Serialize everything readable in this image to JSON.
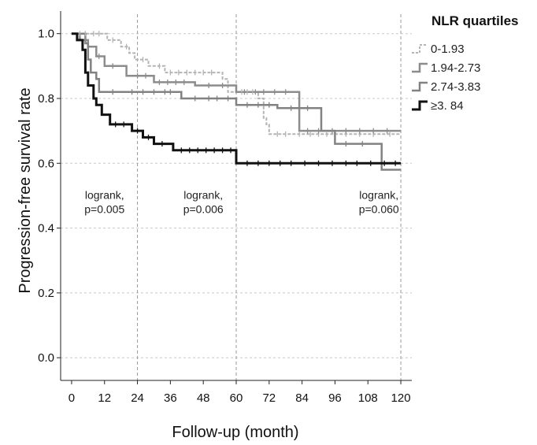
{
  "chart_data": {
    "type": "line",
    "xlabel": "Follow-up (month)",
    "ylabel": "Progression-free survival rate",
    "xlim": [
      -4,
      124
    ],
    "ylim": [
      -0.07,
      1.06
    ],
    "xticks": [
      0,
      12,
      24,
      36,
      48,
      60,
      72,
      84,
      96,
      108,
      120
    ],
    "yticks": [
      0.0,
      0.2,
      0.4,
      0.6,
      0.8,
      1.0
    ],
    "ytick_labels": [
      "0.0",
      "0.2",
      "0.4",
      "0.6",
      "0.8",
      "1.0"
    ],
    "vertical_reference_lines": [
      24,
      60,
      120
    ],
    "grid": "dotted horizontal at y ticks",
    "legend": {
      "title": "NLR quartiles",
      "placement": "top-right, outside plot"
    },
    "series": [
      {
        "name": "0-1.93",
        "color": "#b4b4b4",
        "dashed": true,
        "width": 2,
        "points": [
          [
            0,
            1.0
          ],
          [
            13,
            1.0
          ],
          [
            13,
            0.98
          ],
          [
            18,
            0.98
          ],
          [
            18,
            0.96
          ],
          [
            21,
            0.96
          ],
          [
            21,
            0.94
          ],
          [
            23,
            0.94
          ],
          [
            23,
            0.92
          ],
          [
            28,
            0.92
          ],
          [
            28,
            0.9
          ],
          [
            34,
            0.9
          ],
          [
            34,
            0.88
          ],
          [
            55,
            0.88
          ],
          [
            55,
            0.86
          ],
          [
            57,
            0.86
          ],
          [
            57,
            0.82
          ],
          [
            68,
            0.82
          ],
          [
            68,
            0.8
          ],
          [
            70,
            0.8
          ],
          [
            70,
            0.74
          ],
          [
            71,
            0.74
          ],
          [
            71,
            0.72
          ],
          [
            72,
            0.72
          ],
          [
            72,
            0.69
          ],
          [
            120,
            0.69
          ]
        ],
        "censor_x": [
          3,
          5,
          8,
          10,
          15,
          20,
          26,
          32,
          36,
          39,
          42,
          45,
          48,
          51,
          62,
          64,
          66,
          75,
          78,
          83,
          87,
          90,
          93,
          100,
          105,
          110,
          116
        ]
      },
      {
        "name": "1.94-2.73",
        "color": "#8c8c8c",
        "dashed": false,
        "width": 2.5,
        "points": [
          [
            0,
            1.0
          ],
          [
            3,
            1.0
          ],
          [
            3,
            0.98
          ],
          [
            6,
            0.98
          ],
          [
            6,
            0.96
          ],
          [
            9,
            0.96
          ],
          [
            9,
            0.93
          ],
          [
            12,
            0.93
          ],
          [
            12,
            0.9
          ],
          [
            20,
            0.9
          ],
          [
            20,
            0.87
          ],
          [
            30,
            0.87
          ],
          [
            30,
            0.85
          ],
          [
            45,
            0.85
          ],
          [
            45,
            0.84
          ],
          [
            60,
            0.84
          ],
          [
            60,
            0.82
          ],
          [
            83,
            0.82
          ],
          [
            83,
            0.7
          ],
          [
            120,
            0.7
          ]
        ],
        "censor_x": [
          5,
          10,
          15,
          24,
          27,
          32,
          35,
          38,
          41,
          50,
          55,
          63,
          67,
          70,
          74,
          78,
          86,
          90,
          95,
          100,
          105,
          110,
          115
        ]
      },
      {
        "name": "2.74-3.83",
        "color": "#828282",
        "dashed": false,
        "width": 2.5,
        "points": [
          [
            0,
            1.0
          ],
          [
            5,
            1.0
          ],
          [
            5,
            0.97
          ],
          [
            6,
            0.97
          ],
          [
            6,
            0.92
          ],
          [
            7,
            0.92
          ],
          [
            7,
            0.88
          ],
          [
            9,
            0.88
          ],
          [
            9,
            0.86
          ],
          [
            10,
            0.86
          ],
          [
            10,
            0.82
          ],
          [
            40,
            0.82
          ],
          [
            40,
            0.8
          ],
          [
            60,
            0.8
          ],
          [
            60,
            0.78
          ],
          [
            75,
            0.78
          ],
          [
            75,
            0.77
          ],
          [
            91,
            0.77
          ],
          [
            91,
            0.7
          ],
          [
            96,
            0.7
          ],
          [
            96,
            0.66
          ],
          [
            113,
            0.66
          ],
          [
            113,
            0.58
          ],
          [
            120,
            0.58
          ]
        ],
        "censor_x": [
          15,
          22,
          26,
          30,
          34,
          36,
          45,
          50,
          53,
          57,
          64,
          68,
          72,
          80,
          86,
          100,
          106
        ]
      },
      {
        "name": "≥3. 84",
        "color": "#111111",
        "dashed": false,
        "width": 3,
        "points": [
          [
            0,
            1.0
          ],
          [
            2,
            1.0
          ],
          [
            2,
            0.98
          ],
          [
            4,
            0.98
          ],
          [
            4,
            0.95
          ],
          [
            5,
            0.95
          ],
          [
            5,
            0.88
          ],
          [
            6,
            0.88
          ],
          [
            6,
            0.84
          ],
          [
            8,
            0.84
          ],
          [
            8,
            0.8
          ],
          [
            9,
            0.8
          ],
          [
            9,
            0.78
          ],
          [
            11,
            0.78
          ],
          [
            11,
            0.75
          ],
          [
            14,
            0.75
          ],
          [
            14,
            0.72
          ],
          [
            22,
            0.72
          ],
          [
            22,
            0.7
          ],
          [
            26,
            0.7
          ],
          [
            26,
            0.68
          ],
          [
            30,
            0.68
          ],
          [
            30,
            0.66
          ],
          [
            37,
            0.66
          ],
          [
            37,
            0.64
          ],
          [
            60,
            0.64
          ],
          [
            60,
            0.6
          ],
          [
            120,
            0.6
          ]
        ],
        "censor_x": [
          16,
          19,
          24,
          28,
          33,
          40,
          43,
          46,
          49,
          52,
          55,
          58,
          64,
          68,
          72,
          76,
          80,
          85,
          90,
          95,
          100,
          104,
          109,
          114,
          118
        ]
      }
    ],
    "annotations": [
      {
        "line1": "logrank,",
        "line2": "p=0.005",
        "x": 12,
        "y": 0.49
      },
      {
        "line1": "logrank,",
        "line2": "p=0.006",
        "x": 48,
        "y": 0.49
      },
      {
        "line1": "logrank,",
        "line2": "p=0.060",
        "x": 112,
        "y": 0.49
      }
    ]
  }
}
